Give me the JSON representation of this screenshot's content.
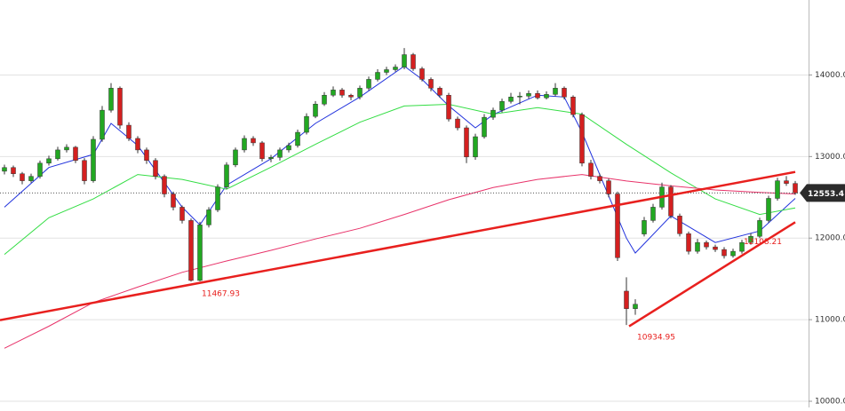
{
  "chart_data": {
    "type": "candlestick",
    "xlim": [
      -0.5,
      89.5
    ],
    "ylim": [
      9924,
      14919
    ],
    "yticks": [
      {
        "value": 14000,
        "label": "14000.00"
      },
      {
        "value": 13000,
        "label": "13000.00"
      },
      {
        "value": 12000,
        "label": "12000.00"
      },
      {
        "value": 11000,
        "label": "11000.00"
      },
      {
        "value": 10000,
        "label": "10000.00"
      }
    ],
    "grid": true,
    "up_color": "#22a822",
    "down_color": "#d42020",
    "candles": [
      [
        12820,
        12900,
        12780,
        12865
      ],
      [
        12865,
        12890,
        12750,
        12789
      ],
      [
        12789,
        12810,
        12660,
        12703
      ],
      [
        12703,
        12790,
        12680,
        12757
      ],
      [
        12757,
        12950,
        12730,
        12919
      ],
      [
        12919,
        13010,
        12890,
        12973
      ],
      [
        12973,
        13120,
        12950,
        13081
      ],
      [
        13081,
        13150,
        13050,
        13114
      ],
      [
        13114,
        13130,
        12920,
        12952
      ],
      [
        12952,
        12980,
        12660,
        12703
      ],
      [
        12703,
        13250,
        12680,
        13211
      ],
      [
        13211,
        13620,
        13180,
        13568
      ],
      [
        13568,
        13900,
        13540,
        13838
      ],
      [
        13838,
        13860,
        13340,
        13384
      ],
      [
        13384,
        13420,
        13190,
        13222
      ],
      [
        13222,
        13250,
        13040,
        13081
      ],
      [
        13081,
        13110,
        12910,
        12952
      ],
      [
        12952,
        12980,
        12720,
        12757
      ],
      [
        12757,
        12780,
        12500,
        12541
      ],
      [
        12541,
        12570,
        12340,
        12379
      ],
      [
        12379,
        12400,
        12180,
        12216
      ],
      [
        12216,
        12240,
        11468,
        11481
      ],
      [
        11481,
        12200,
        11470,
        12162
      ],
      [
        12162,
        12380,
        12130,
        12346
      ],
      [
        12346,
        12660,
        12320,
        12627
      ],
      [
        12627,
        12930,
        12600,
        12897
      ],
      [
        12897,
        13110,
        12870,
        13081
      ],
      [
        13081,
        13260,
        13050,
        13222
      ],
      [
        13222,
        13250,
        13130,
        13168
      ],
      [
        13168,
        13190,
        12940,
        12973
      ],
      [
        12973,
        13020,
        12930,
        12990
      ],
      [
        12990,
        13110,
        12950,
        13081
      ],
      [
        13081,
        13170,
        13050,
        13135
      ],
      [
        13135,
        13330,
        13110,
        13297
      ],
      [
        13297,
        13530,
        13270,
        13492
      ],
      [
        13492,
        13680,
        13470,
        13643
      ],
      [
        13643,
        13790,
        13620,
        13752
      ],
      [
        13752,
        13860,
        13730,
        13816
      ],
      [
        13816,
        13840,
        13720,
        13752
      ],
      [
        13752,
        13770,
        13690,
        13730
      ],
      [
        13730,
        13870,
        13700,
        13838
      ],
      [
        13838,
        13980,
        13810,
        13946
      ],
      [
        13946,
        14070,
        13920,
        14032
      ],
      [
        14032,
        14100,
        14000,
        14065
      ],
      [
        14065,
        14130,
        14040,
        14097
      ],
      [
        14097,
        14330,
        14070,
        14249
      ],
      [
        14249,
        14270,
        14050,
        14076
      ],
      [
        14076,
        14100,
        13920,
        13946
      ],
      [
        13946,
        13970,
        13800,
        13838
      ],
      [
        13838,
        13860,
        13720,
        13752
      ],
      [
        13752,
        13780,
        13430,
        13460
      ],
      [
        13460,
        13490,
        13320,
        13352
      ],
      [
        13352,
        13380,
        12920,
        12995
      ],
      [
        12995,
        13280,
        12960,
        13243
      ],
      [
        13243,
        13520,
        13220,
        13481
      ],
      [
        13481,
        13600,
        13450,
        13568
      ],
      [
        13568,
        13710,
        13540,
        13676
      ],
      [
        13676,
        13780,
        13650,
        13730
      ],
      [
        13730,
        13790,
        13640,
        13741
      ],
      [
        13741,
        13810,
        13710,
        13773
      ],
      [
        13773,
        13810,
        13700,
        13720
      ],
      [
        13720,
        13800,
        13700,
        13762
      ],
      [
        13762,
        13900,
        13740,
        13838
      ],
      [
        13838,
        13860,
        13700,
        13730
      ],
      [
        13730,
        13750,
        13480,
        13514
      ],
      [
        13514,
        13540,
        12880,
        12919
      ],
      [
        12919,
        12960,
        12720,
        12757
      ],
      [
        12757,
        12790,
        12670,
        12703
      ],
      [
        12703,
        12730,
        12500,
        12541
      ],
      [
        12541,
        12570,
        11720,
        11760
      ],
      [
        11350,
        11520,
        10935,
        11135
      ],
      [
        11135,
        11250,
        11060,
        11189
      ],
      [
        12050,
        12260,
        12020,
        12216
      ],
      [
        12216,
        12420,
        12190,
        12379
      ],
      [
        12379,
        12680,
        12350,
        12627
      ],
      [
        12627,
        12650,
        12240,
        12271
      ],
      [
        12271,
        12300,
        12020,
        12054
      ],
      [
        12054,
        12080,
        11800,
        11838
      ],
      [
        11838,
        11990,
        11810,
        11946
      ],
      [
        11946,
        11970,
        11860,
        11892
      ],
      [
        11892,
        11920,
        11830,
        11860
      ],
      [
        11860,
        11890,
        11750,
        11784
      ],
      [
        11784,
        11870,
        11760,
        11838
      ],
      [
        11838,
        11980,
        11810,
        11946
      ],
      [
        11946,
        12060,
        11920,
        12022
      ],
      [
        12022,
        12250,
        12000,
        12216
      ],
      [
        12216,
        12520,
        12190,
        12487
      ],
      [
        12487,
        12740,
        12460,
        12703
      ],
      [
        12703,
        12760,
        12640,
        12670
      ],
      [
        12670,
        12700,
        12530,
        12553.4
      ]
    ],
    "series": [
      {
        "color": "#2233dd",
        "x": [
          0,
          5,
          10,
          12,
          15,
          20,
          22,
          25,
          30,
          35,
          40,
          45,
          47,
          50,
          53,
          55,
          60,
          63,
          65,
          70,
          71,
          75,
          80,
          85,
          89
        ],
        "values": [
          12379,
          12865,
          13027,
          13406,
          13135,
          12379,
          12162,
          12649,
          12973,
          13406,
          13730,
          14108,
          13946,
          13622,
          13352,
          13514,
          13752,
          13730,
          13297,
          12000,
          11817,
          12271,
          11946,
          12087,
          12487
        ]
      },
      {
        "color": "#33dd44",
        "x": [
          0,
          5,
          10,
          15,
          20,
          25,
          30,
          35,
          40,
          45,
          50,
          55,
          60,
          65,
          70,
          75,
          80,
          85,
          89
        ],
        "values": [
          11800,
          12250,
          12480,
          12780,
          12720,
          12600,
          12870,
          13150,
          13420,
          13620,
          13640,
          13520,
          13600,
          13520,
          13150,
          12800,
          12480,
          12290,
          12370
        ]
      },
      {
        "color": "#e8336a",
        "x": [
          0,
          5,
          10,
          15,
          20,
          25,
          30,
          35,
          40,
          45,
          50,
          55,
          60,
          65,
          70,
          75,
          80,
          85,
          89
        ],
        "values": [
          10650,
          10920,
          11210,
          11400,
          11580,
          11720,
          11850,
          11990,
          12120,
          12290,
          12470,
          12620,
          12720,
          12780,
          12700,
          12640,
          12590,
          12560,
          12541
        ]
      }
    ],
    "trendlines": [
      {
        "color": "#e8201e",
        "x": [
          -0.5,
          89
        ],
        "values": [
          10995,
          12811
        ]
      },
      {
        "color": "#e8201e",
        "x": [
          70.3,
          89
        ],
        "values": [
          10919,
          12195
        ]
      }
    ],
    "annotations": [
      {
        "x": 21,
        "value": 11467.93
      },
      {
        "x": 70,
        "value": 10934.95
      },
      {
        "x": 82,
        "value": 12108.21
      }
    ],
    "last_price": 12553.4
  }
}
